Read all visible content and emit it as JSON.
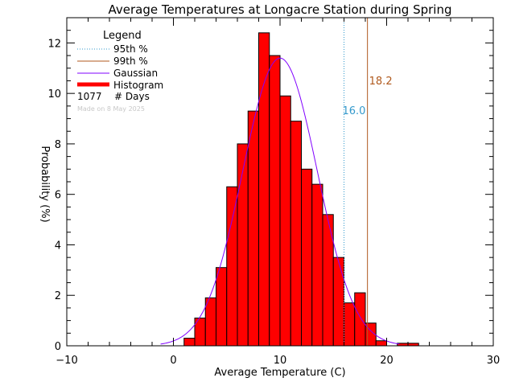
{
  "chart_data": {
    "type": "bar",
    "title": "Average Temperatures at Longacre Station during Spring",
    "xlabel": "Average Temperature (C)",
    "ylabel": "Probability (%)",
    "xlim": [
      -10,
      30
    ],
    "ylim": [
      0,
      13
    ],
    "xticks": [
      -10,
      0,
      10,
      20,
      30
    ],
    "yticks": [
      0,
      2,
      4,
      6,
      8,
      10,
      12
    ],
    "xtick_labels": [
      "−10",
      "0",
      "10",
      "20",
      "30"
    ],
    "ytick_labels": [
      "0",
      "2",
      "4",
      "6",
      "8",
      "10",
      "12"
    ],
    "bin_width": 1,
    "bins": [
      {
        "x0": 1,
        "y": 0.3
      },
      {
        "x0": 2,
        "y": 1.1
      },
      {
        "x0": 3,
        "y": 1.9
      },
      {
        "x0": 4,
        "y": 3.1
      },
      {
        "x0": 5,
        "y": 6.3
      },
      {
        "x0": 6,
        "y": 8.0
      },
      {
        "x0": 7,
        "y": 9.3
      },
      {
        "x0": 8,
        "y": 12.4
      },
      {
        "x0": 9,
        "y": 11.5
      },
      {
        "x0": 10,
        "y": 9.9
      },
      {
        "x0": 11,
        "y": 8.9
      },
      {
        "x0": 12,
        "y": 7.0
      },
      {
        "x0": 13,
        "y": 6.4
      },
      {
        "x0": 14,
        "y": 5.2
      },
      {
        "x0": 15,
        "y": 3.5
      },
      {
        "x0": 16,
        "y": 1.7
      },
      {
        "x0": 17,
        "y": 2.1
      },
      {
        "x0": 18,
        "y": 0.9
      },
      {
        "x0": 19,
        "y": 0.2
      },
      {
        "x0": 21,
        "y": 0.1
      },
      {
        "x0": 22,
        "y": 0.1
      }
    ],
    "gaussian": {
      "mean": 10.0,
      "peak": 11.4,
      "sigma": 3.5
    },
    "percentile_95": {
      "value": 16.0,
      "label": "16.0",
      "color": "#3399cc"
    },
    "percentile_99": {
      "value": 18.2,
      "label": "18.2",
      "color": "#b05a1e"
    },
    "colors": {
      "histogram": "#ff0000",
      "gaussian": "#8000ff",
      "axes": "#000000"
    },
    "grid": false,
    "legend_position": "top-left"
  },
  "legend": {
    "title": "Legend",
    "items": [
      {
        "label": "95th %",
        "style": "dotted",
        "color": "#3399cc"
      },
      {
        "label": "99th %",
        "style": "solid",
        "color": "#b05a1e"
      },
      {
        "label": "Gaussian",
        "style": "solid",
        "color": "#8000ff"
      },
      {
        "label": "Histogram",
        "style": "thick",
        "color": "#ff0000"
      }
    ],
    "count_value": "1077",
    "count_label": "# Days"
  },
  "note": "Made on 8 May 2025"
}
